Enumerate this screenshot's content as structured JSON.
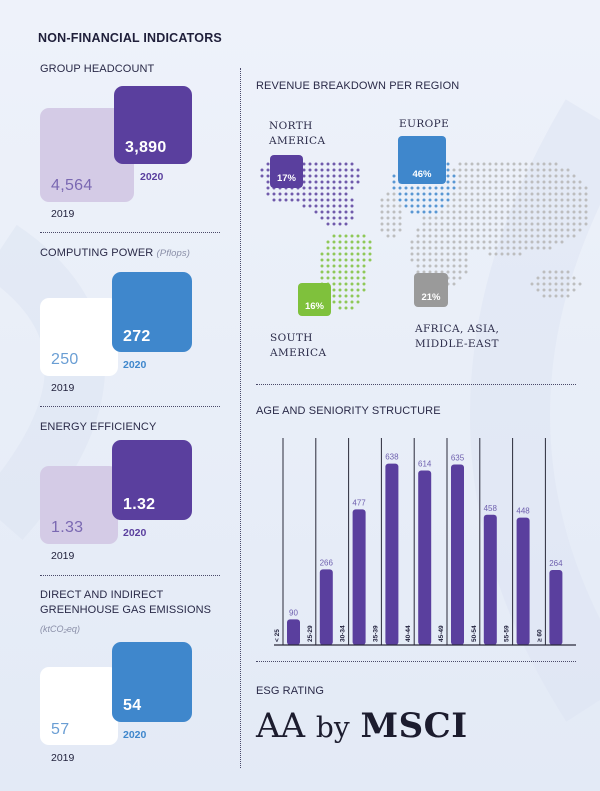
{
  "title": "NON-FINANCIAL INDICATORS",
  "colors": {
    "purple": "#5a3f9e",
    "light_purple": "#d4cbe6",
    "blue": "#3f87cc",
    "white": "#ffffff",
    "green": "#7fc13c",
    "grey": "#9a9a9a"
  },
  "indicators": [
    {
      "label": "GROUP HEADCOUNT",
      "unit": "",
      "value_2019": "4,564",
      "value_2020": "3,890",
      "year_old": "2019",
      "year_new": "2020"
    },
    {
      "label": "COMPUTING POWER",
      "unit": "(Pflops)",
      "value_2019": "250",
      "value_2020": "272",
      "year_old": "2019",
      "year_new": "2020"
    },
    {
      "label": "ENERGY EFFICIENCY",
      "unit": "",
      "value_2019": "1.33",
      "value_2020": "1.32",
      "year_old": "2019",
      "year_new": "2020"
    },
    {
      "label_line1": "DIRECT AND INDIRECT",
      "label_line2": "GREENHOUSE GAS EMISSIONS",
      "unit": "(ktCO₂eq)",
      "value_2019": "57",
      "value_2020": "54",
      "year_old": "2019",
      "year_new": "2020"
    }
  ],
  "revenue": {
    "title": "REVENUE BREAKDOWN PER REGION",
    "regions": [
      {
        "name_line1": "NORTH",
        "name_line2": "AMERICA",
        "name_line3": "",
        "percent": "17%",
        "color": "#5a3f9e"
      },
      {
        "name_line1": "EUROPE",
        "name_line2": "",
        "name_line3": "",
        "percent": "46%",
        "color": "#3f87cc"
      },
      {
        "name_line1": "SOUTH",
        "name_line2": "AMERICA",
        "name_line3": "",
        "percent": "16%",
        "color": "#7fc13c"
      },
      {
        "name_line1": "AFRICA, ASIA,",
        "name_line2": "MIDDLE-EAST",
        "name_line3": "",
        "percent": "21%",
        "color": "#9a9a9a"
      }
    ]
  },
  "age_section_title": "AGE AND SENIORITY STRUCTURE",
  "chart_data": {
    "type": "bar",
    "title": "AGE AND SENIORITY STRUCTURE",
    "categories": [
      "< 25",
      "25-29",
      "30-34",
      "35-39",
      "40-44",
      "45-49",
      "50-54",
      "55-59",
      "≥ 60"
    ],
    "values": [
      90,
      266,
      477,
      638,
      614,
      635,
      458,
      448,
      264
    ],
    "ylim": [
      0,
      700
    ],
    "grid": false,
    "color": "#5a3f9e"
  },
  "esg": {
    "label": "ESG RATING",
    "rating": "AA",
    "by": "by",
    "agency": "MSCI"
  }
}
